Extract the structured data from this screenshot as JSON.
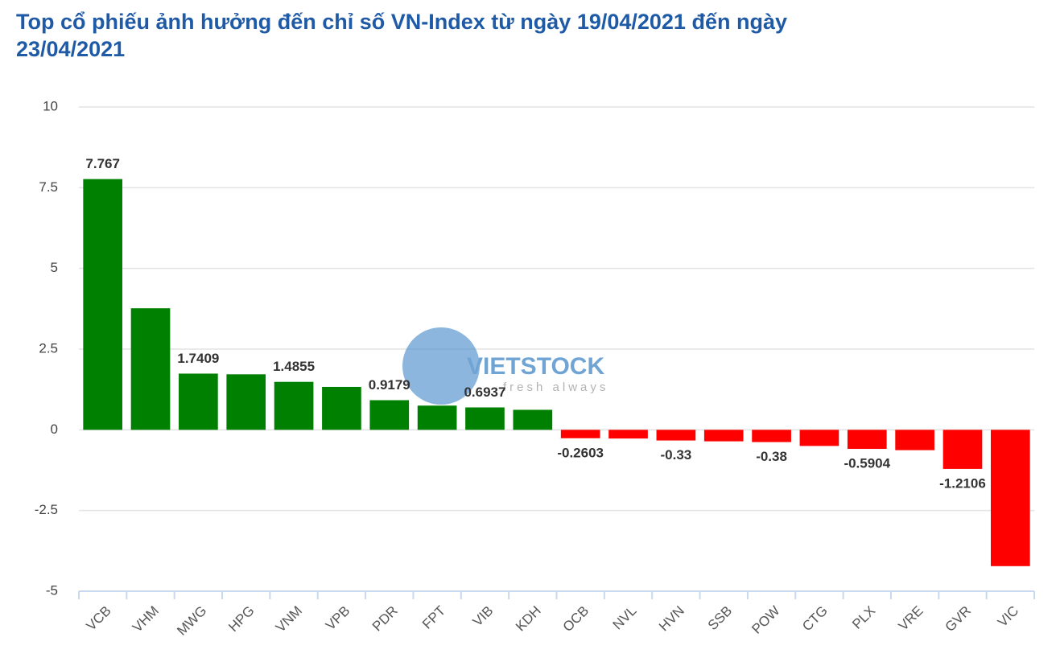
{
  "chart_data": {
    "type": "bar",
    "title": "Top cổ phiếu ảnh hưởng đến chỉ số VN-Index từ ngày 19/04/2021 đến ngày 23/04/2021",
    "watermark": {
      "brand": "VIETSTOCK",
      "tagline": "fresh always"
    },
    "categories": [
      "VCB",
      "VHM",
      "MWG",
      "HPG",
      "VNM",
      "VPB",
      "PDR",
      "FPT",
      "VIB",
      "KDH",
      "OCB",
      "NVL",
      "HVN",
      "SSB",
      "POW",
      "CTG",
      "PLX",
      "VRE",
      "GVR",
      "VIC"
    ],
    "values": [
      7.767,
      3.7655,
      1.7409,
      1.72,
      1.4855,
      1.33,
      0.9179,
      0.75,
      0.6937,
      0.62,
      -0.2603,
      -0.27,
      -0.33,
      -0.3563,
      -0.38,
      -0.5,
      -0.5904,
      -0.63,
      -1.2106,
      -4.2227
    ],
    "positive_color": "#008000",
    "negative_color": "#ff0000",
    "ylim": [
      -5,
      10
    ],
    "yticks": [
      -5,
      -2.5,
      0,
      2.5,
      5,
      7.5,
      10
    ],
    "grid": true
  }
}
